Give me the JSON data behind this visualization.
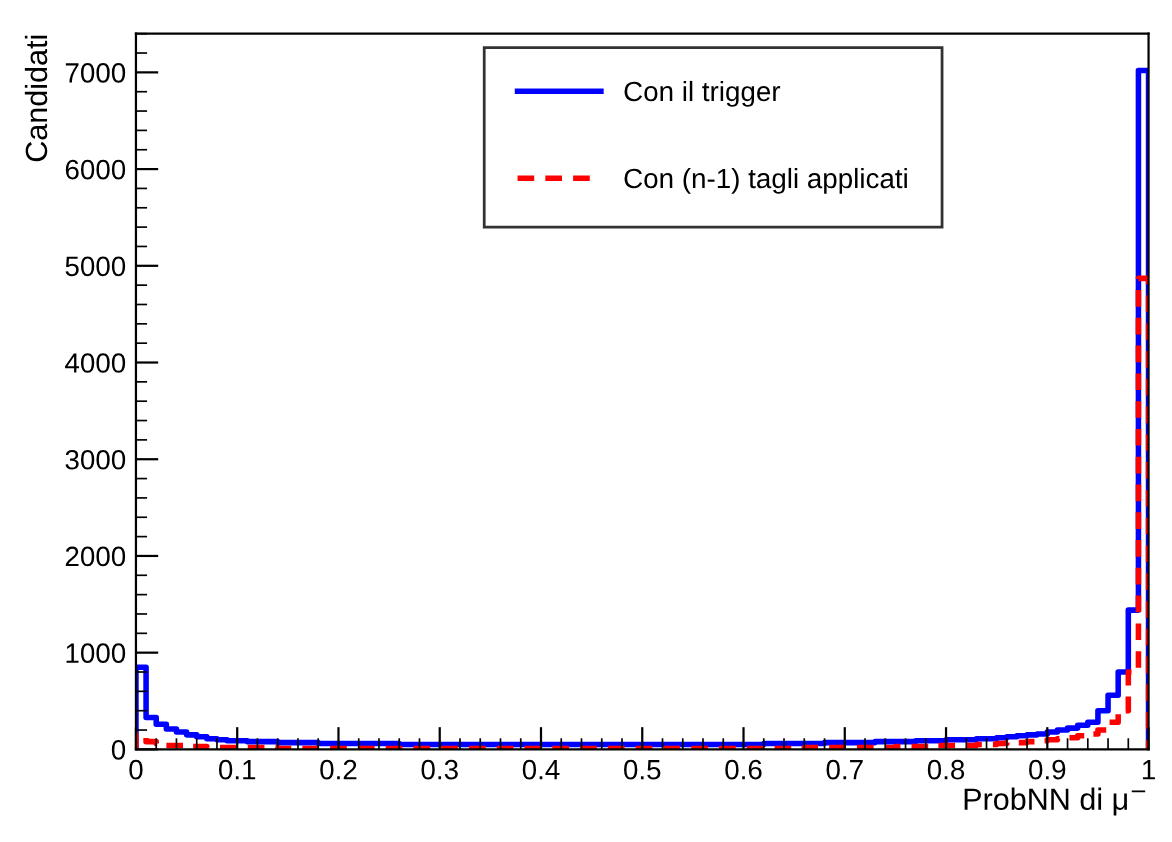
{
  "chart_data": {
    "type": "histogram",
    "xlabel": "ProbNN di μ$^{−}$",
    "ylabel": "Candidati",
    "bins": [
      0,
      0.01,
      0.02,
      0.03,
      0.04,
      0.05,
      0.06,
      0.07,
      0.08,
      0.09,
      0.1,
      0.11,
      0.12,
      0.13,
      0.14,
      0.15,
      0.16,
      0.17,
      0.18,
      0.19,
      0.2,
      0.21,
      0.22,
      0.23,
      0.24,
      0.25,
      0.26,
      0.27,
      0.28,
      0.29,
      0.3,
      0.31,
      0.32,
      0.33,
      0.34,
      0.35,
      0.36,
      0.37,
      0.38,
      0.39,
      0.4,
      0.41,
      0.42,
      0.43,
      0.44,
      0.45,
      0.46,
      0.47,
      0.48,
      0.49,
      0.5,
      0.51,
      0.52,
      0.53,
      0.54,
      0.55,
      0.56,
      0.57,
      0.58,
      0.59,
      0.6,
      0.61,
      0.62,
      0.63,
      0.64,
      0.65,
      0.66,
      0.67,
      0.68,
      0.69,
      0.7,
      0.71,
      0.72,
      0.73,
      0.74,
      0.75,
      0.76,
      0.77,
      0.78,
      0.79,
      0.8,
      0.81,
      0.82,
      0.83,
      0.84,
      0.85,
      0.86,
      0.87,
      0.88,
      0.89,
      0.9,
      0.91,
      0.92,
      0.93,
      0.94,
      0.95,
      0.96,
      0.97,
      0.98,
      0.99,
      1
    ],
    "series": [
      {
        "name": "Con il trigger",
        "color": "#0000ff",
        "line_style": "solid",
        "values": [
          850,
          330,
          260,
          210,
          180,
          150,
          130,
          110,
          100,
          90,
          90,
          80,
          80,
          80,
          70,
          70,
          70,
          70,
          60,
          60,
          60,
          60,
          60,
          60,
          60,
          60,
          50,
          50,
          50,
          50,
          50,
          50,
          50,
          50,
          50,
          50,
          50,
          50,
          50,
          50,
          50,
          50,
          50,
          50,
          50,
          50,
          50,
          50,
          50,
          50,
          50,
          50,
          50,
          50,
          50,
          50,
          50,
          50,
          50,
          50,
          50,
          50,
          60,
          60,
          60,
          60,
          60,
          60,
          70,
          70,
          70,
          70,
          70,
          80,
          80,
          80,
          80,
          90,
          90,
          90,
          100,
          100,
          100,
          110,
          110,
          120,
          130,
          140,
          150,
          160,
          180,
          200,
          220,
          250,
          280,
          400,
          560,
          800,
          1440,
          7020
        ]
      },
      {
        "name": "Con (n-1) tagli applicati",
        "color": "#ff0000",
        "line_style": "dashed",
        "values": [
          150,
          80,
          60,
          40,
          40,
          30,
          30,
          20,
          20,
          20,
          20,
          20,
          20,
          20,
          10,
          10,
          10,
          10,
          10,
          10,
          10,
          10,
          10,
          10,
          10,
          10,
          10,
          10,
          10,
          10,
          10,
          10,
          10,
          10,
          10,
          10,
          10,
          10,
          10,
          10,
          10,
          10,
          10,
          10,
          10,
          10,
          10,
          10,
          10,
          10,
          10,
          10,
          10,
          10,
          10,
          10,
          10,
          10,
          10,
          10,
          10,
          10,
          10,
          10,
          10,
          10,
          20,
          20,
          20,
          20,
          20,
          20,
          20,
          20,
          20,
          30,
          30,
          30,
          30,
          40,
          40,
          40,
          40,
          50,
          50,
          60,
          70,
          70,
          80,
          90,
          100,
          110,
          120,
          140,
          160,
          200,
          280,
          400,
          800,
          4870
        ]
      }
    ],
    "xlim": [
      0,
      1
    ],
    "ylim": [
      0,
      7400
    ],
    "xticks": [
      0,
      0.1,
      0.2,
      0.3,
      0.4,
      0.5,
      0.6,
      0.7,
      0.8,
      0.9,
      1
    ],
    "yticks": [
      0,
      1000,
      2000,
      3000,
      4000,
      5000,
      6000,
      7000
    ],
    "legend": "top",
    "grid": false
  }
}
